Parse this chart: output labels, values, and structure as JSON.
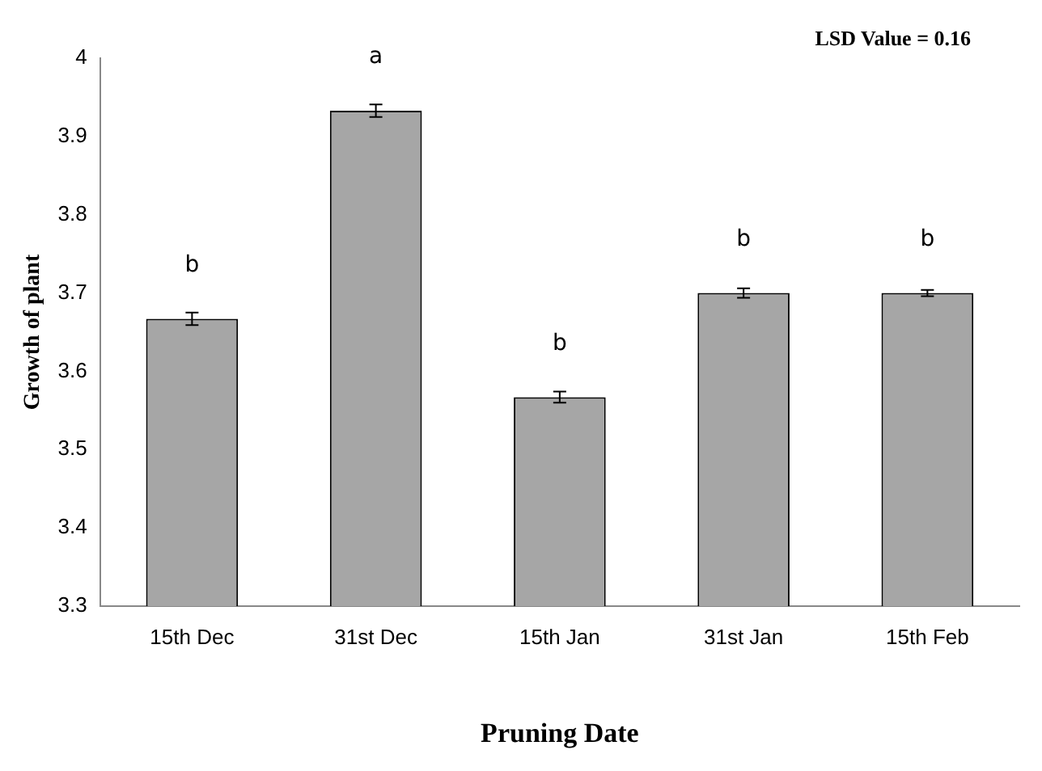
{
  "chart_data": {
    "type": "bar",
    "xlabel": "Pruning Date",
    "ylabel": "Growth of plant",
    "categories": [
      "15th Dec",
      "31st Dec",
      "15th Jan",
      "31st Jan",
      "15th Feb"
    ],
    "values": [
      3.667,
      3.933,
      3.567,
      3.7,
      3.7
    ],
    "errors": [
      0.008,
      0.008,
      0.007,
      0.006,
      0.004
    ],
    "color": "#a6a6a6",
    "ylim": [
      3.3,
      4
    ],
    "yticks": [
      3.3,
      3.4,
      3.5,
      3.6,
      3.7,
      3.8,
      3.9,
      4
    ],
    "grid": false,
    "legend": false,
    "annotations": [
      {
        "text": "b",
        "x": "15th Dec",
        "y": 3.667
      },
      {
        "text": "a",
        "x": "31st Dec",
        "y": 3.933
      },
      {
        "text": "b",
        "x": "15th Jan",
        "y": 3.567
      },
      {
        "text": "b",
        "x": "31st Jan",
        "y": 3.7
      },
      {
        "text": "b",
        "x": "15th Feb",
        "y": 3.7
      },
      "LSD Value = 0.16"
    ]
  }
}
